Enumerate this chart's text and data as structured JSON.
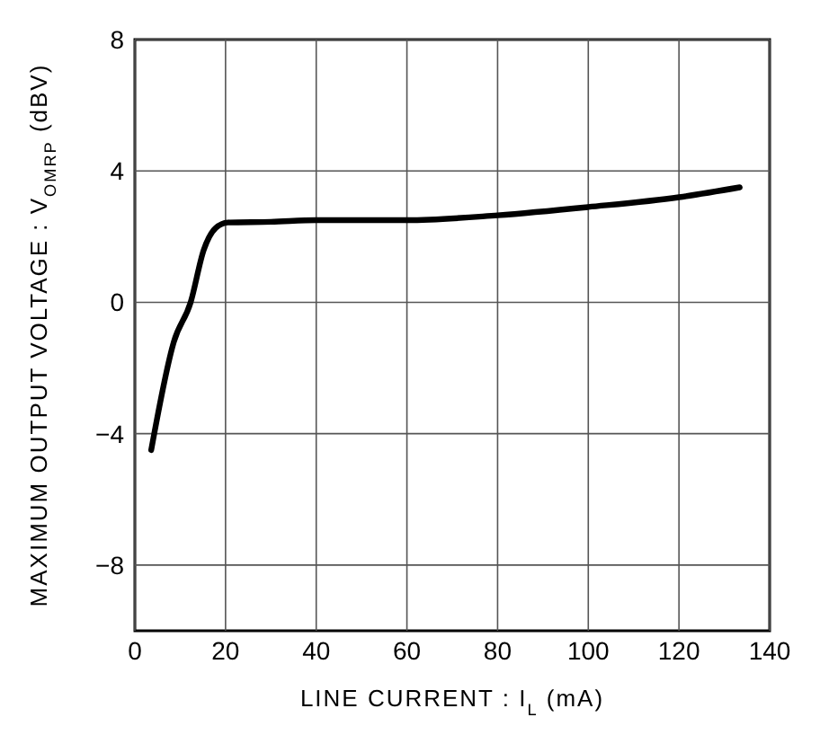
{
  "chart_data": {
    "type": "line",
    "xlabel": "LINE CURRENT : I$_{L}$ (mA)",
    "ylabel": "MAXIMUM OUTPUT VOLTAGE : V$_{OMRP}$ (dBV)",
    "x": [
      3.6,
      8.6,
      12.3,
      15.2,
      17.8,
      20.5,
      30,
      40,
      60,
      80,
      100,
      120,
      133.4
    ],
    "series": [
      {
        "color": "#000000",
        "values": [
          -4.5,
          -1.2,
          0,
          1.6,
          2.26,
          2.43,
          2.45,
          2.5,
          2.5,
          2.65,
          2.9,
          3.2,
          3.5
        ]
      }
    ],
    "xlim": [
      0,
      140
    ],
    "xticks": [
      0,
      20,
      40,
      60,
      80,
      100,
      120,
      140
    ],
    "ylim": [
      -10,
      8
    ],
    "yticks": [
      {
        "value": -8,
        "label": "−8"
      },
      {
        "value": -4,
        "label": "−4"
      },
      0,
      4,
      8
    ],
    "grid": true,
    "marker": "none",
    "line_style": "solid"
  }
}
